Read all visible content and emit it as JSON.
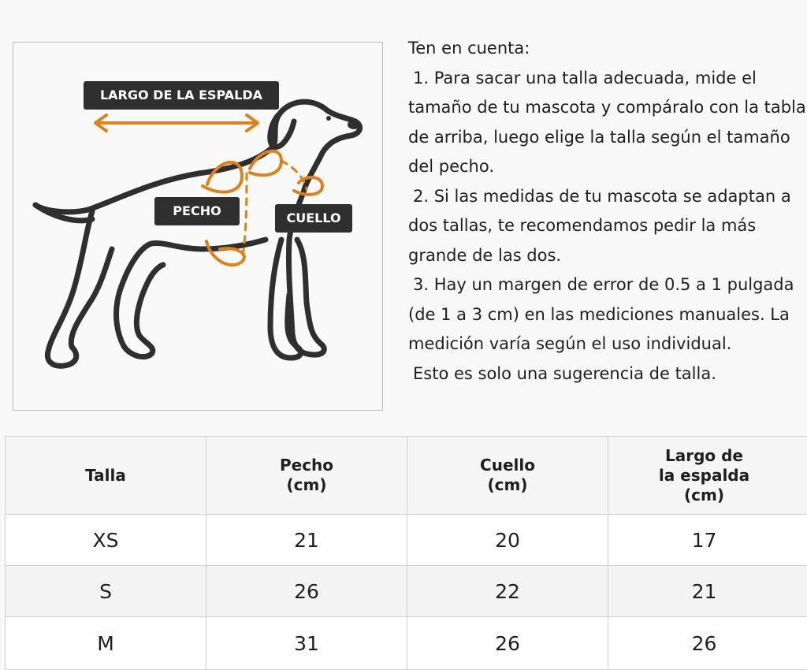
{
  "diagram": {
    "labels": {
      "back_length": "LARGO DE LA ESPALDA",
      "chest": "PECHO",
      "neck": "CUELLO"
    },
    "colors": {
      "outline": "#2f2f2f",
      "arrow": "#d9821e",
      "label_bg": "#2f2f2f"
    }
  },
  "notes": {
    "heading": "Ten en cuenta:",
    "items": [
      "1. Para sacar una talla adecuada, mide el tamaño de tu mascota y compáralo con la tabla de arriba, luego elige la talla según el tamaño del pecho.",
      "2. Si las medidas de tu mascota se adaptan a dos tallas, te recomendamos pedir la más grande de las dos.",
      "3. Hay un margen de error de 0.5 a 1 pulgada (de 1 a 3 cm) en las mediciones manuales. La medición varía según el uso individual."
    ],
    "footer": "Esto es solo una sugerencia de talla."
  },
  "size_table": {
    "headers": [
      [
        "Talla"
      ],
      [
        "Pecho",
        "(cm)"
      ],
      [
        "Cuello",
        "(cm)"
      ],
      [
        "Largo de",
        "la espalda",
        "(cm)"
      ]
    ],
    "rows": [
      [
        "XS",
        "21",
        "20",
        "17"
      ],
      [
        "S",
        "26",
        "22",
        "21"
      ],
      [
        "M",
        "31",
        "26",
        "26"
      ]
    ]
  }
}
